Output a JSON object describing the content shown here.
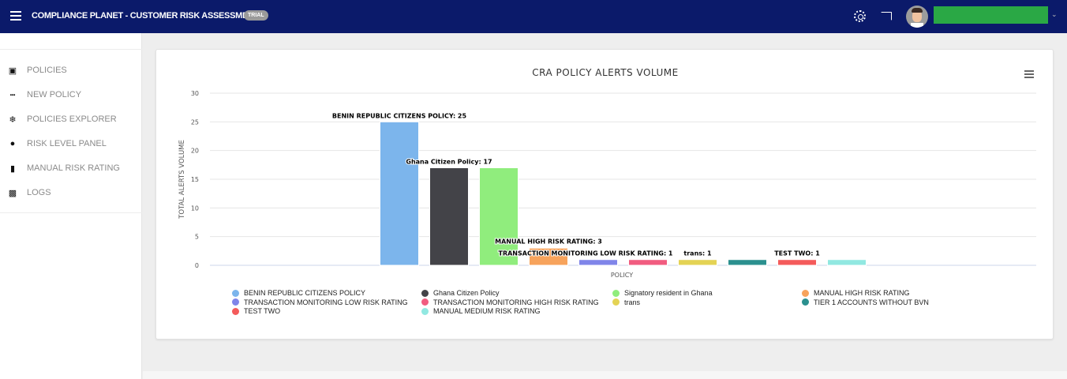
{
  "header": {
    "title": "COMPLIANCE PLANET - CUSTOMER RISK ASSESSMENT",
    "badge": "TRIAL",
    "icons": [
      "menu-icon",
      "gear-icon",
      "cast-icon",
      "avatar",
      "chevron-down-icon"
    ],
    "colors": {
      "bar": "#0b1a6a",
      "username_block": "#2aa845"
    }
  },
  "sidebar": {
    "items": [
      {
        "label": "POLICIES",
        "icon": "briefcase-icon",
        "glyph": "▣"
      },
      {
        "label": "NEW POLICY",
        "icon": "bar-chart-icon",
        "glyph": "┅"
      },
      {
        "label": "POLICIES EXPLORER",
        "icon": "snowflake-icon",
        "glyph": "❄"
      },
      {
        "label": "RISK LEVEL PANEL",
        "icon": "life-ring-icon",
        "glyph": "●"
      },
      {
        "label": "MANUAL RISK RATING",
        "icon": "file-icon",
        "glyph": "▮"
      },
      {
        "label": "LOGS",
        "icon": "line-chart-icon",
        "glyph": "▩"
      }
    ]
  },
  "chart_data": {
    "type": "bar",
    "title": "CRA POLICY ALERTS VOLUME",
    "xlabel": "POLICY",
    "ylabel": "TOTAL ALERTS VOLUME",
    "ylim": [
      0,
      30
    ],
    "yticks": [
      "0",
      "5",
      "10",
      "15",
      "20",
      "25",
      "30"
    ],
    "grid": true,
    "legend_placement": "bottom",
    "series": [
      {
        "name": "BENIN REPUBLIC CITIZENS POLICY",
        "value": 25,
        "color": "#7cb5ec",
        "label": "BENIN REPUBLIC CITIZENS POLICY: 25"
      },
      {
        "name": "Ghana Citizen Policy",
        "value": 17,
        "color": "#434348",
        "label": "Ghana Citizen Policy: 17"
      },
      {
        "name": "Signatory resident in Ghana",
        "value": 17,
        "color": "#90ed7d",
        "label": ""
      },
      {
        "name": "MANUAL HIGH RISK RATING",
        "value": 3,
        "color": "#f7a35c",
        "label": "MANUAL HIGH RISK RATING: 3"
      },
      {
        "name": "TRANSACTION MONITORING LOW RISK RATING",
        "value": 1,
        "color": "#8085e9",
        "label": "TRANSACTION MONITORING LOW RISK RATING: 1"
      },
      {
        "name": "TRANSACTION MONITORING HIGH RISK RATING",
        "value": 1,
        "color": "#f15c80",
        "label": ""
      },
      {
        "name": "trans",
        "value": 1,
        "color": "#e4d354",
        "label": "trans: 1"
      },
      {
        "name": "TIER 1 ACCOUNTS WITHOUT BVN",
        "value": 1,
        "color": "#2b908f",
        "label": ""
      },
      {
        "name": "TEST TWO",
        "value": 1,
        "color": "#f45b5b",
        "label": "TEST TWO: 1"
      },
      {
        "name": "MANUAL MEDIUM RISK RATING",
        "value": 1,
        "color": "#91e8e1",
        "label": ""
      }
    ]
  }
}
